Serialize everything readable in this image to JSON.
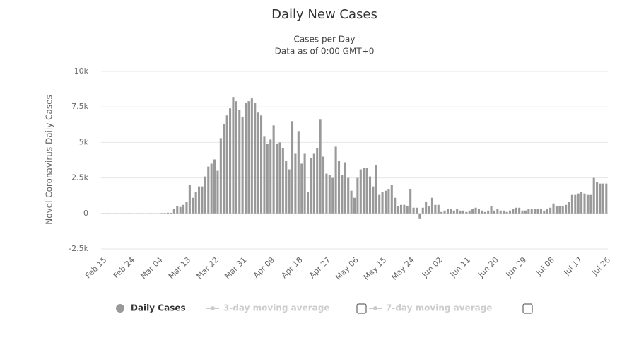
{
  "chart_data": {
    "type": "bar",
    "title": "Daily New Cases",
    "subtitle": "Cases per Day",
    "note": "Data as of 0:00 GMT+0",
    "y_label": "Novel Coronavirus Daily Cases",
    "categories": [
      "Feb 15",
      null,
      null,
      null,
      null,
      null,
      null,
      null,
      null,
      "Feb 24",
      null,
      null,
      null,
      null,
      null,
      null,
      null,
      null,
      "Mar 04",
      null,
      null,
      null,
      null,
      null,
      null,
      null,
      null,
      "Mar 13",
      null,
      null,
      null,
      null,
      null,
      null,
      null,
      null,
      "Mar 22",
      null,
      null,
      null,
      null,
      null,
      null,
      null,
      null,
      "Mar 31",
      null,
      null,
      null,
      null,
      null,
      null,
      null,
      null,
      "Apr 09",
      null,
      null,
      null,
      null,
      null,
      null,
      null,
      null,
      "Apr 18",
      null,
      null,
      null,
      null,
      null,
      null,
      null,
      null,
      "Apr 27",
      null,
      null,
      null,
      null,
      null,
      null,
      null,
      null,
      "May 06",
      null,
      null,
      null,
      null,
      null,
      null,
      null,
      null,
      "May 15",
      null,
      null,
      null,
      null,
      null,
      null,
      null,
      null,
      "May 24",
      null,
      null,
      null,
      null,
      null,
      null,
      null,
      null,
      "Jun 02",
      null,
      null,
      null,
      null,
      null,
      null,
      null,
      null,
      "Jun 11",
      null,
      null,
      null,
      null,
      null,
      null,
      null,
      null,
      "Jun 20",
      null,
      null,
      null,
      null,
      null,
      null,
      null,
      null,
      "Jun 29",
      null,
      null,
      null,
      null,
      null,
      null,
      null,
      null,
      "Jul 08",
      null,
      null,
      null,
      null,
      null,
      null,
      null,
      null,
      "Jul 17",
      null,
      null,
      null,
      null,
      null,
      null,
      null,
      null,
      "Jul 26"
    ],
    "series": [
      {
        "name": "Daily Cases",
        "color": "#999999",
        "values": [
          0,
          0,
          0,
          0,
          0,
          0,
          0,
          0,
          0,
          0,
          0,
          0,
          0,
          0,
          0,
          0,
          0,
          0,
          0,
          20,
          30,
          50,
          40,
          300,
          500,
          450,
          600,
          800,
          2000,
          1100,
          1500,
          1900,
          1900,
          2600,
          3300,
          3500,
          3800,
          3000,
          5300,
          6300,
          6900,
          7400,
          8200,
          7900,
          7300,
          6800,
          7800,
          7900,
          8100,
          7800,
          7100,
          6900,
          5400,
          4900,
          5200,
          6200,
          4900,
          5000,
          4600,
          3700,
          3100,
          6500,
          4200,
          5800,
          3500,
          4200,
          1500,
          3900,
          4200,
          4600,
          6600,
          4000,
          2800,
          2700,
          2500,
          4700,
          3700,
          2700,
          3600,
          2500,
          1600,
          1100,
          2500,
          3100,
          3200,
          3200,
          2600,
          1900,
          3400,
          1300,
          1500,
          1600,
          1700,
          2000,
          1100,
          500,
          600,
          600,
          500,
          1700,
          400,
          400,
          -400,
          400,
          800,
          500,
          1100,
          600,
          600,
          100,
          200,
          300,
          300,
          200,
          300,
          200,
          200,
          100,
          200,
          300,
          400,
          300,
          200,
          100,
          200,
          500,
          200,
          300,
          200,
          200,
          100,
          200,
          300,
          400,
          400,
          200,
          200,
          300,
          300,
          300,
          300,
          300,
          200,
          300,
          400,
          700,
          500,
          500,
          500,
          600,
          800,
          1300,
          1300,
          1400,
          1500,
          1400,
          1300,
          1300,
          2500,
          2200,
          2100,
          2100,
          2100
        ]
      }
    ],
    "hidden_series": [
      {
        "name": "3-day moving average",
        "color": "#cccccc"
      },
      {
        "name": "7-day moving average",
        "color": "#cccccc"
      }
    ],
    "ylim": [
      -2500,
      10000
    ],
    "yticks": [
      {
        "value": -2500,
        "label": "-2.5k"
      },
      0,
      {
        "value": 2500,
        "label": "2.5k"
      },
      {
        "value": 5000,
        "label": "5k"
      },
      {
        "value": 7500,
        "label": "7.5k"
      },
      {
        "value": 10000,
        "label": "10k"
      }
    ],
    "grid": true
  }
}
